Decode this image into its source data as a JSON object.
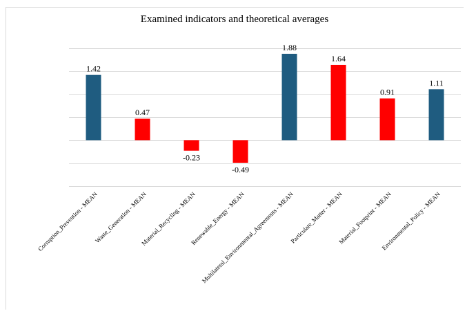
{
  "chart_data": {
    "type": "bar",
    "title": "Examined indicators and theoretical averages",
    "categories": [
      "Corruption_Prevention - MEAN",
      "Waste_Generation - MEAN",
      "Material_Recycling - MEAN",
      "Renewable_Energy - MEAN",
      "Multilateral_Environmental_Agreements - MEAN",
      "Particulate_Matter - MEAN",
      "Material_Footprint - MEAN",
      "Environmental_Policy - MEAN"
    ],
    "values": [
      1.42,
      0.47,
      -0.23,
      -0.49,
      1.88,
      1.64,
      0.91,
      1.11
    ],
    "data_labels": [
      "1.42",
      "0.47",
      "-0.23",
      "-0.49",
      "1.88",
      "1.64",
      "0.91",
      "1.11"
    ],
    "bar_colors": [
      "#1f5c80",
      "#ff0000",
      "#ff0000",
      "#ff0000",
      "#1f5c80",
      "#ff0000",
      "#ff0000",
      "#1f5c80"
    ],
    "xlabel": "",
    "ylabel": "",
    "ylim": [
      -1.0,
      2.0
    ],
    "gridlines": [
      -1.0,
      -0.5,
      0.0,
      0.5,
      1.0,
      1.5,
      2.0
    ],
    "grid": true,
    "legend": "none",
    "y_tick_labels_shown": false
  }
}
